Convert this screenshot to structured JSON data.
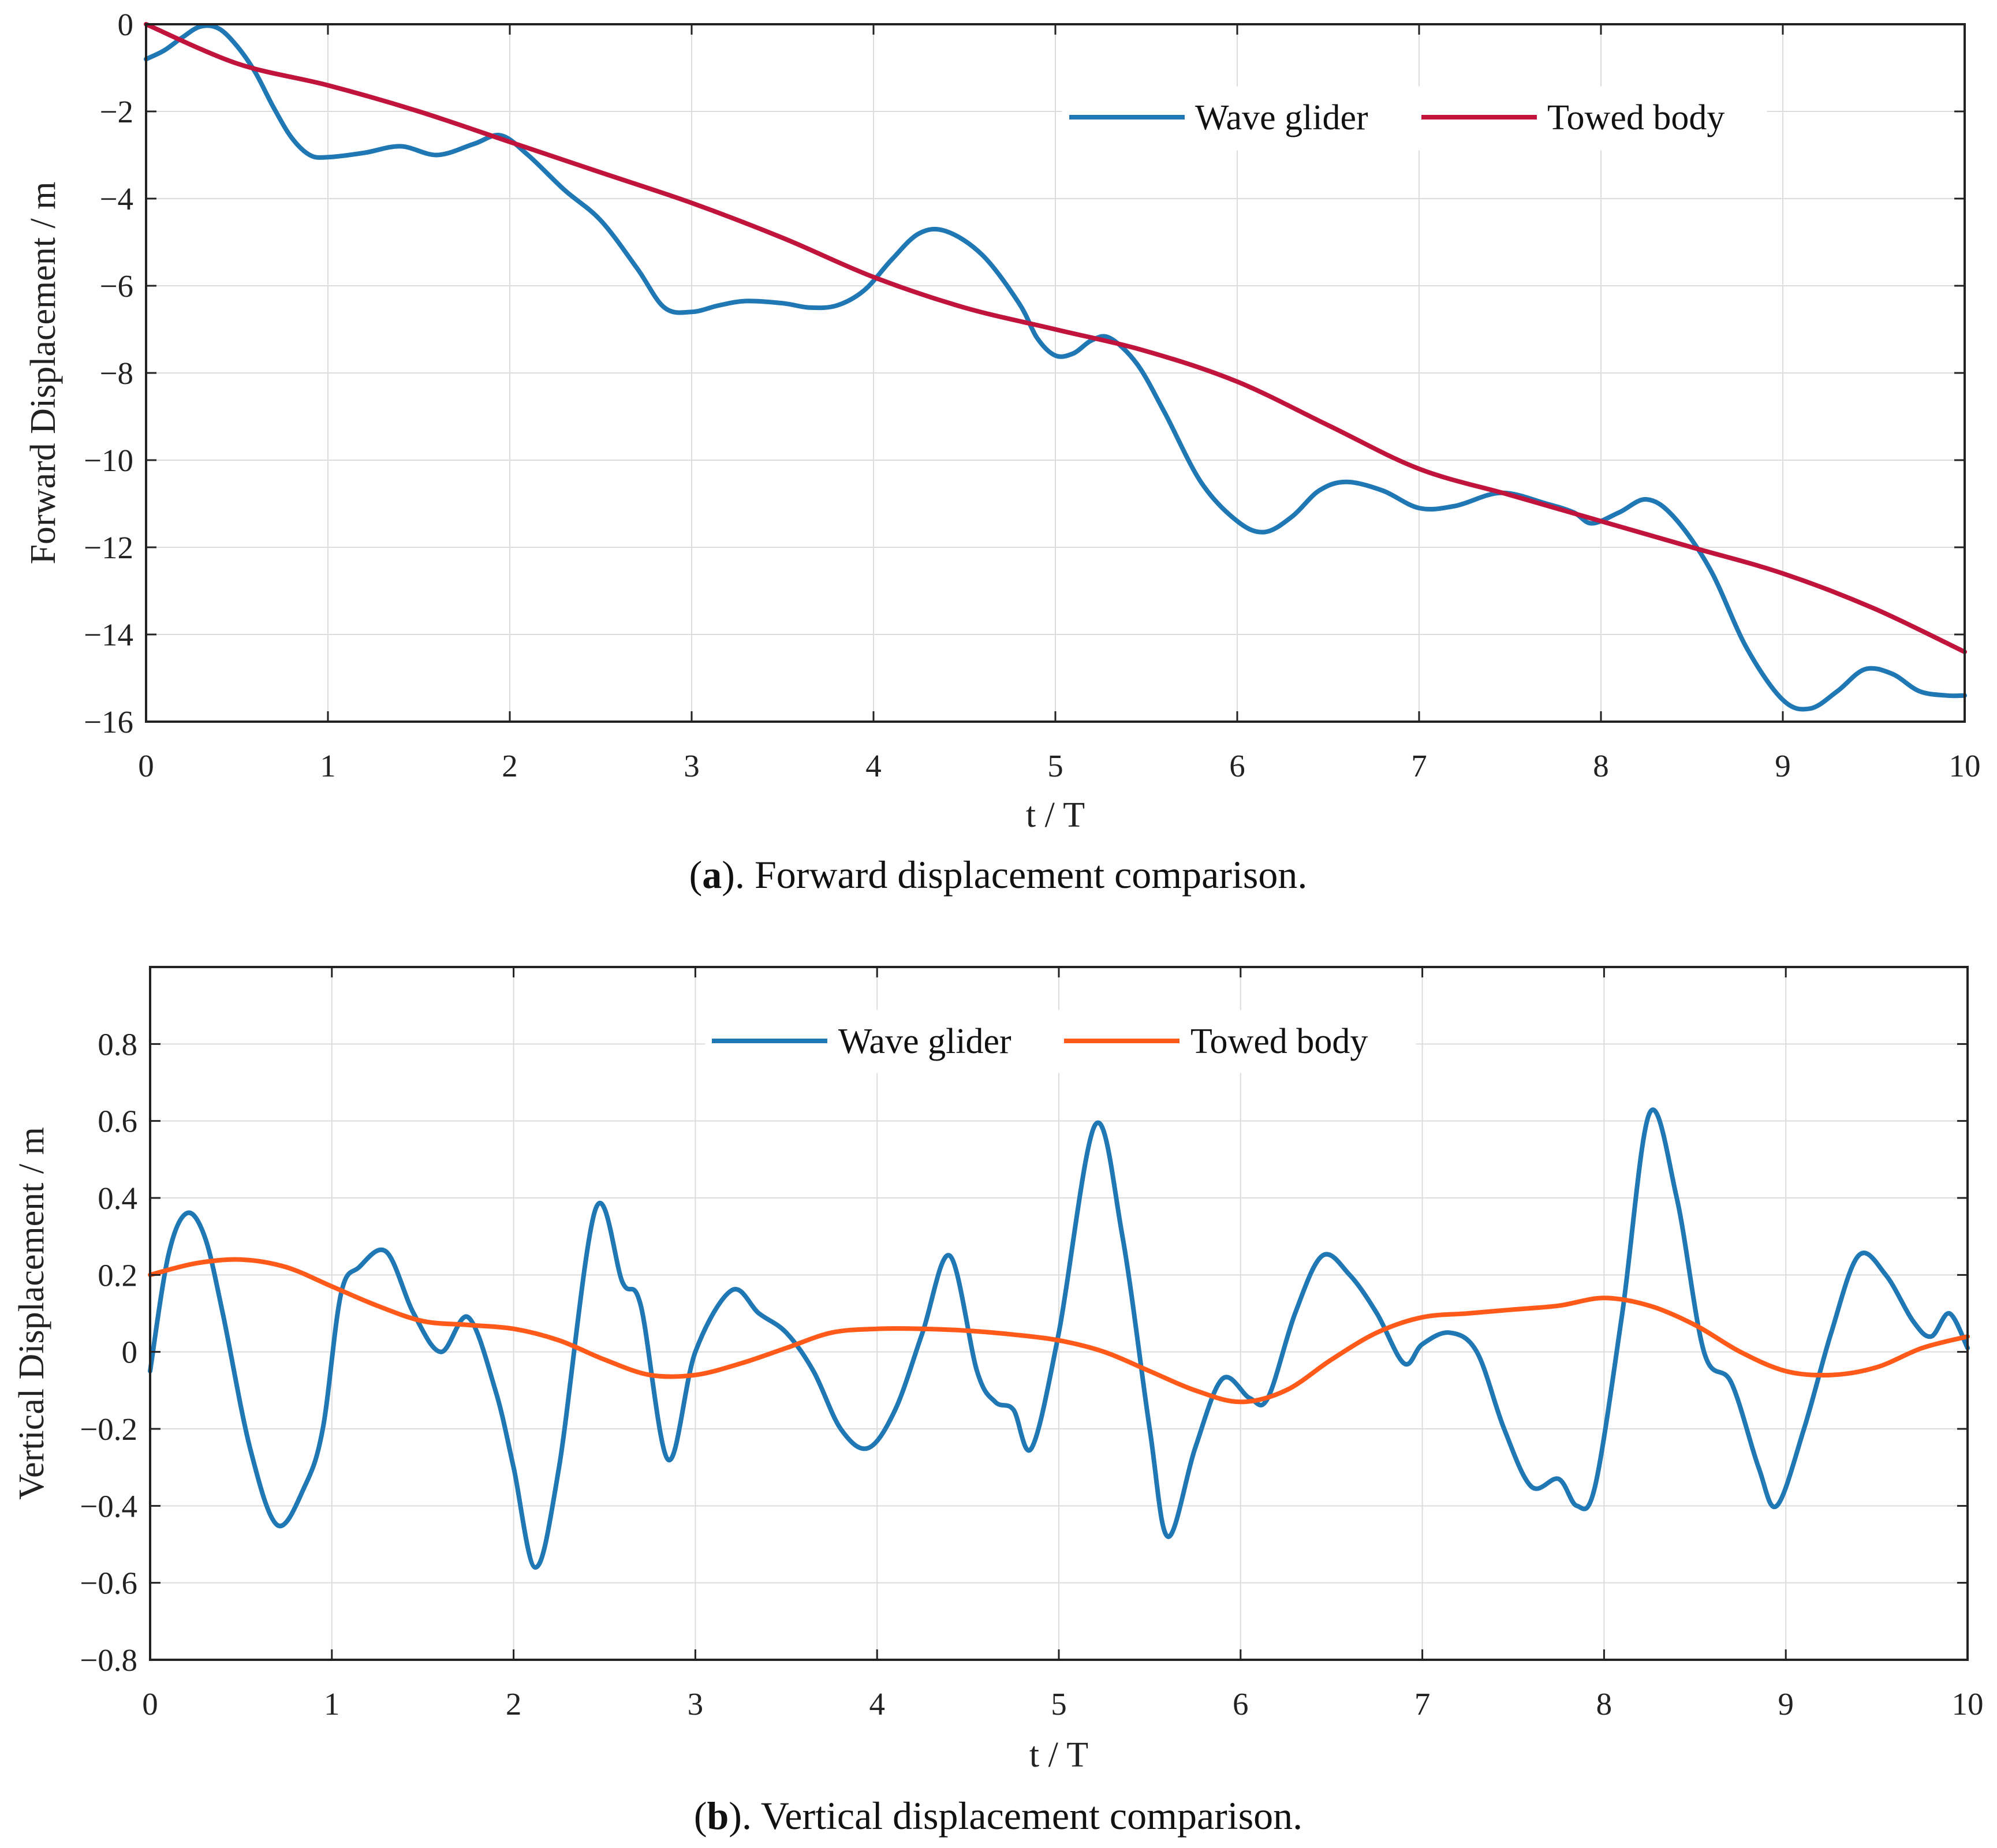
{
  "chart_data": [
    {
      "type": "line",
      "panel_letter": "a",
      "caption_rest": "). Forward displacement comparison.",
      "xlabel": "t / T",
      "ylabel": "Forward Displacement / m",
      "xlim": [
        0,
        10
      ],
      "ylim": [
        -16,
        0
      ],
      "xticks": [
        0,
        1,
        2,
        3,
        4,
        5,
        6,
        7,
        8,
        9,
        10
      ],
      "yticks": [
        0,
        -2,
        -4,
        -6,
        -8,
        -10,
        -12,
        -14,
        -16
      ],
      "ytick_labels": [
        "0",
        "−2",
        "−4",
        "−6",
        "−8",
        "−10",
        "−12",
        "−14",
        "−16"
      ],
      "grid": true,
      "legend_position": "top-right",
      "series": [
        {
          "name": "Wave glider",
          "color": "#1f77b4",
          "x": [
            0,
            0.1,
            0.2,
            0.3,
            0.4,
            0.5,
            0.6,
            0.7,
            0.8,
            0.9,
            1.0,
            1.2,
            1.4,
            1.6,
            1.8,
            1.95,
            2.1,
            2.3,
            2.5,
            2.7,
            2.85,
            3.0,
            3.15,
            3.3,
            3.5,
            3.65,
            3.8,
            3.95,
            4.1,
            4.25,
            4.4,
            4.6,
            4.8,
            4.9,
            5.0,
            5.1,
            5.2,
            5.3,
            5.45,
            5.6,
            5.8,
            6.0,
            6.15,
            6.3,
            6.45,
            6.6,
            6.8,
            7.0,
            7.2,
            7.45,
            7.7,
            7.85,
            7.95,
            8.1,
            8.25,
            8.4,
            8.6,
            8.8,
            9.0,
            9.15,
            9.3,
            9.45,
            9.6,
            9.75,
            9.9,
            10.0
          ],
          "y": [
            -0.8,
            -0.6,
            -0.3,
            -0.05,
            -0.1,
            -0.5,
            -1.1,
            -1.9,
            -2.6,
            -3.0,
            -3.05,
            -2.95,
            -2.8,
            -3.0,
            -2.75,
            -2.55,
            -3.0,
            -3.8,
            -4.5,
            -5.6,
            -6.5,
            -6.6,
            -6.45,
            -6.35,
            -6.4,
            -6.5,
            -6.45,
            -6.1,
            -5.4,
            -4.8,
            -4.75,
            -5.3,
            -6.4,
            -7.2,
            -7.6,
            -7.55,
            -7.25,
            -7.2,
            -7.8,
            -8.9,
            -10.5,
            -11.4,
            -11.65,
            -11.3,
            -10.7,
            -10.5,
            -10.7,
            -11.1,
            -11.05,
            -10.75,
            -11.0,
            -11.2,
            -11.45,
            -11.2,
            -10.9,
            -11.3,
            -12.5,
            -14.3,
            -15.5,
            -15.7,
            -15.3,
            -14.8,
            -14.9,
            -15.3,
            -15.4,
            -15.4
          ]
        },
        {
          "name": "Towed body",
          "color": "#c0143c",
          "x": [
            0,
            0.5,
            1.0,
            1.5,
            2.0,
            2.5,
            3.0,
            3.5,
            4.0,
            4.5,
            5.0,
            5.5,
            6.0,
            6.5,
            7.0,
            7.5,
            8.0,
            8.5,
            9.0,
            9.5,
            10.0
          ],
          "y": [
            0,
            -0.9,
            -1.4,
            -2.0,
            -2.7,
            -3.4,
            -4.1,
            -4.9,
            -5.8,
            -6.5,
            -7.0,
            -7.5,
            -8.2,
            -9.2,
            -10.2,
            -10.8,
            -11.4,
            -12.0,
            -12.6,
            -13.4,
            -14.4
          ]
        }
      ]
    },
    {
      "type": "line",
      "panel_letter": "b",
      "caption_rest": "). Vertical displacement comparison.",
      "xlabel": "t / T",
      "ylabel": "Vertical Displacement / m",
      "xlim": [
        0,
        10
      ],
      "ylim": [
        -0.8,
        1.0
      ],
      "xticks": [
        0,
        1,
        2,
        3,
        4,
        5,
        6,
        7,
        8,
        9,
        10
      ],
      "yticks": [
        0.8,
        0.6,
        0.4,
        0.2,
        0,
        -0.2,
        -0.4,
        -0.6,
        -0.8
      ],
      "ytick_labels": [
        "0.8",
        "0.6",
        "0.4",
        "0.2",
        "0",
        "−0.2",
        "−0.4",
        "−0.6",
        "−0.8"
      ],
      "grid": true,
      "legend_position": "top-center",
      "series": [
        {
          "name": "Wave glider",
          "color": "#1f77b4",
          "x": [
            0,
            0.1,
            0.2,
            0.3,
            0.4,
            0.55,
            0.7,
            0.85,
            0.95,
            1.05,
            1.15,
            1.3,
            1.45,
            1.6,
            1.75,
            1.9,
            2.0,
            2.12,
            2.25,
            2.45,
            2.6,
            2.7,
            2.85,
            3.0,
            3.2,
            3.35,
            3.5,
            3.65,
            3.8,
            3.95,
            4.1,
            4.25,
            4.4,
            4.55,
            4.65,
            4.75,
            4.85,
            5.0,
            5.2,
            5.35,
            5.5,
            5.6,
            5.75,
            5.9,
            6.05,
            6.15,
            6.3,
            6.45,
            6.6,
            6.75,
            6.9,
            7.0,
            7.15,
            7.3,
            7.45,
            7.6,
            7.75,
            7.85,
            7.95,
            8.1,
            8.25,
            8.4,
            8.55,
            8.7,
            8.85,
            8.95,
            9.1,
            9.25,
            9.4,
            9.55,
            9.7,
            9.8,
            9.9,
            10.0
          ],
          "y": [
            -0.05,
            0.25,
            0.36,
            0.3,
            0.1,
            -0.25,
            -0.45,
            -0.35,
            -0.2,
            0.15,
            0.22,
            0.26,
            0.1,
            0.0,
            0.09,
            -0.1,
            -0.3,
            -0.56,
            -0.3,
            0.37,
            0.18,
            0.12,
            -0.28,
            0.0,
            0.16,
            0.1,
            0.05,
            -0.05,
            -0.2,
            -0.25,
            -0.15,
            0.05,
            0.25,
            -0.05,
            -0.13,
            -0.15,
            -0.25,
            0.05,
            0.59,
            0.3,
            -0.2,
            -0.48,
            -0.25,
            -0.07,
            -0.12,
            -0.12,
            0.1,
            0.25,
            0.2,
            0.1,
            -0.03,
            0.02,
            0.05,
            0.0,
            -0.2,
            -0.35,
            -0.33,
            -0.4,
            -0.35,
            0.1,
            0.62,
            0.4,
            0.0,
            -0.08,
            -0.3,
            -0.4,
            -0.2,
            0.05,
            0.25,
            0.2,
            0.08,
            0.04,
            0.1,
            0.01
          ]
        },
        {
          "name": "Towed body",
          "color": "#ff5a1a",
          "x": [
            0,
            0.25,
            0.5,
            0.75,
            1.0,
            1.25,
            1.5,
            1.75,
            2.0,
            2.25,
            2.5,
            2.75,
            3.0,
            3.25,
            3.5,
            3.75,
            4.0,
            4.25,
            4.5,
            4.75,
            5.0,
            5.25,
            5.5,
            5.75,
            6.0,
            6.25,
            6.5,
            6.75,
            7.0,
            7.25,
            7.5,
            7.75,
            8.0,
            8.25,
            8.5,
            8.75,
            9.0,
            9.25,
            9.5,
            9.75,
            10.0
          ],
          "y": [
            0.2,
            0.23,
            0.24,
            0.22,
            0.17,
            0.12,
            0.08,
            0.07,
            0.06,
            0.03,
            -0.02,
            -0.06,
            -0.06,
            -0.03,
            0.01,
            0.05,
            0.06,
            0.06,
            0.055,
            0.045,
            0.03,
            0.0,
            -0.05,
            -0.1,
            -0.13,
            -0.1,
            -0.02,
            0.05,
            0.09,
            0.1,
            0.11,
            0.12,
            0.14,
            0.12,
            0.07,
            0.0,
            -0.05,
            -0.06,
            -0.04,
            0.01,
            0.04
          ]
        }
      ]
    }
  ]
}
